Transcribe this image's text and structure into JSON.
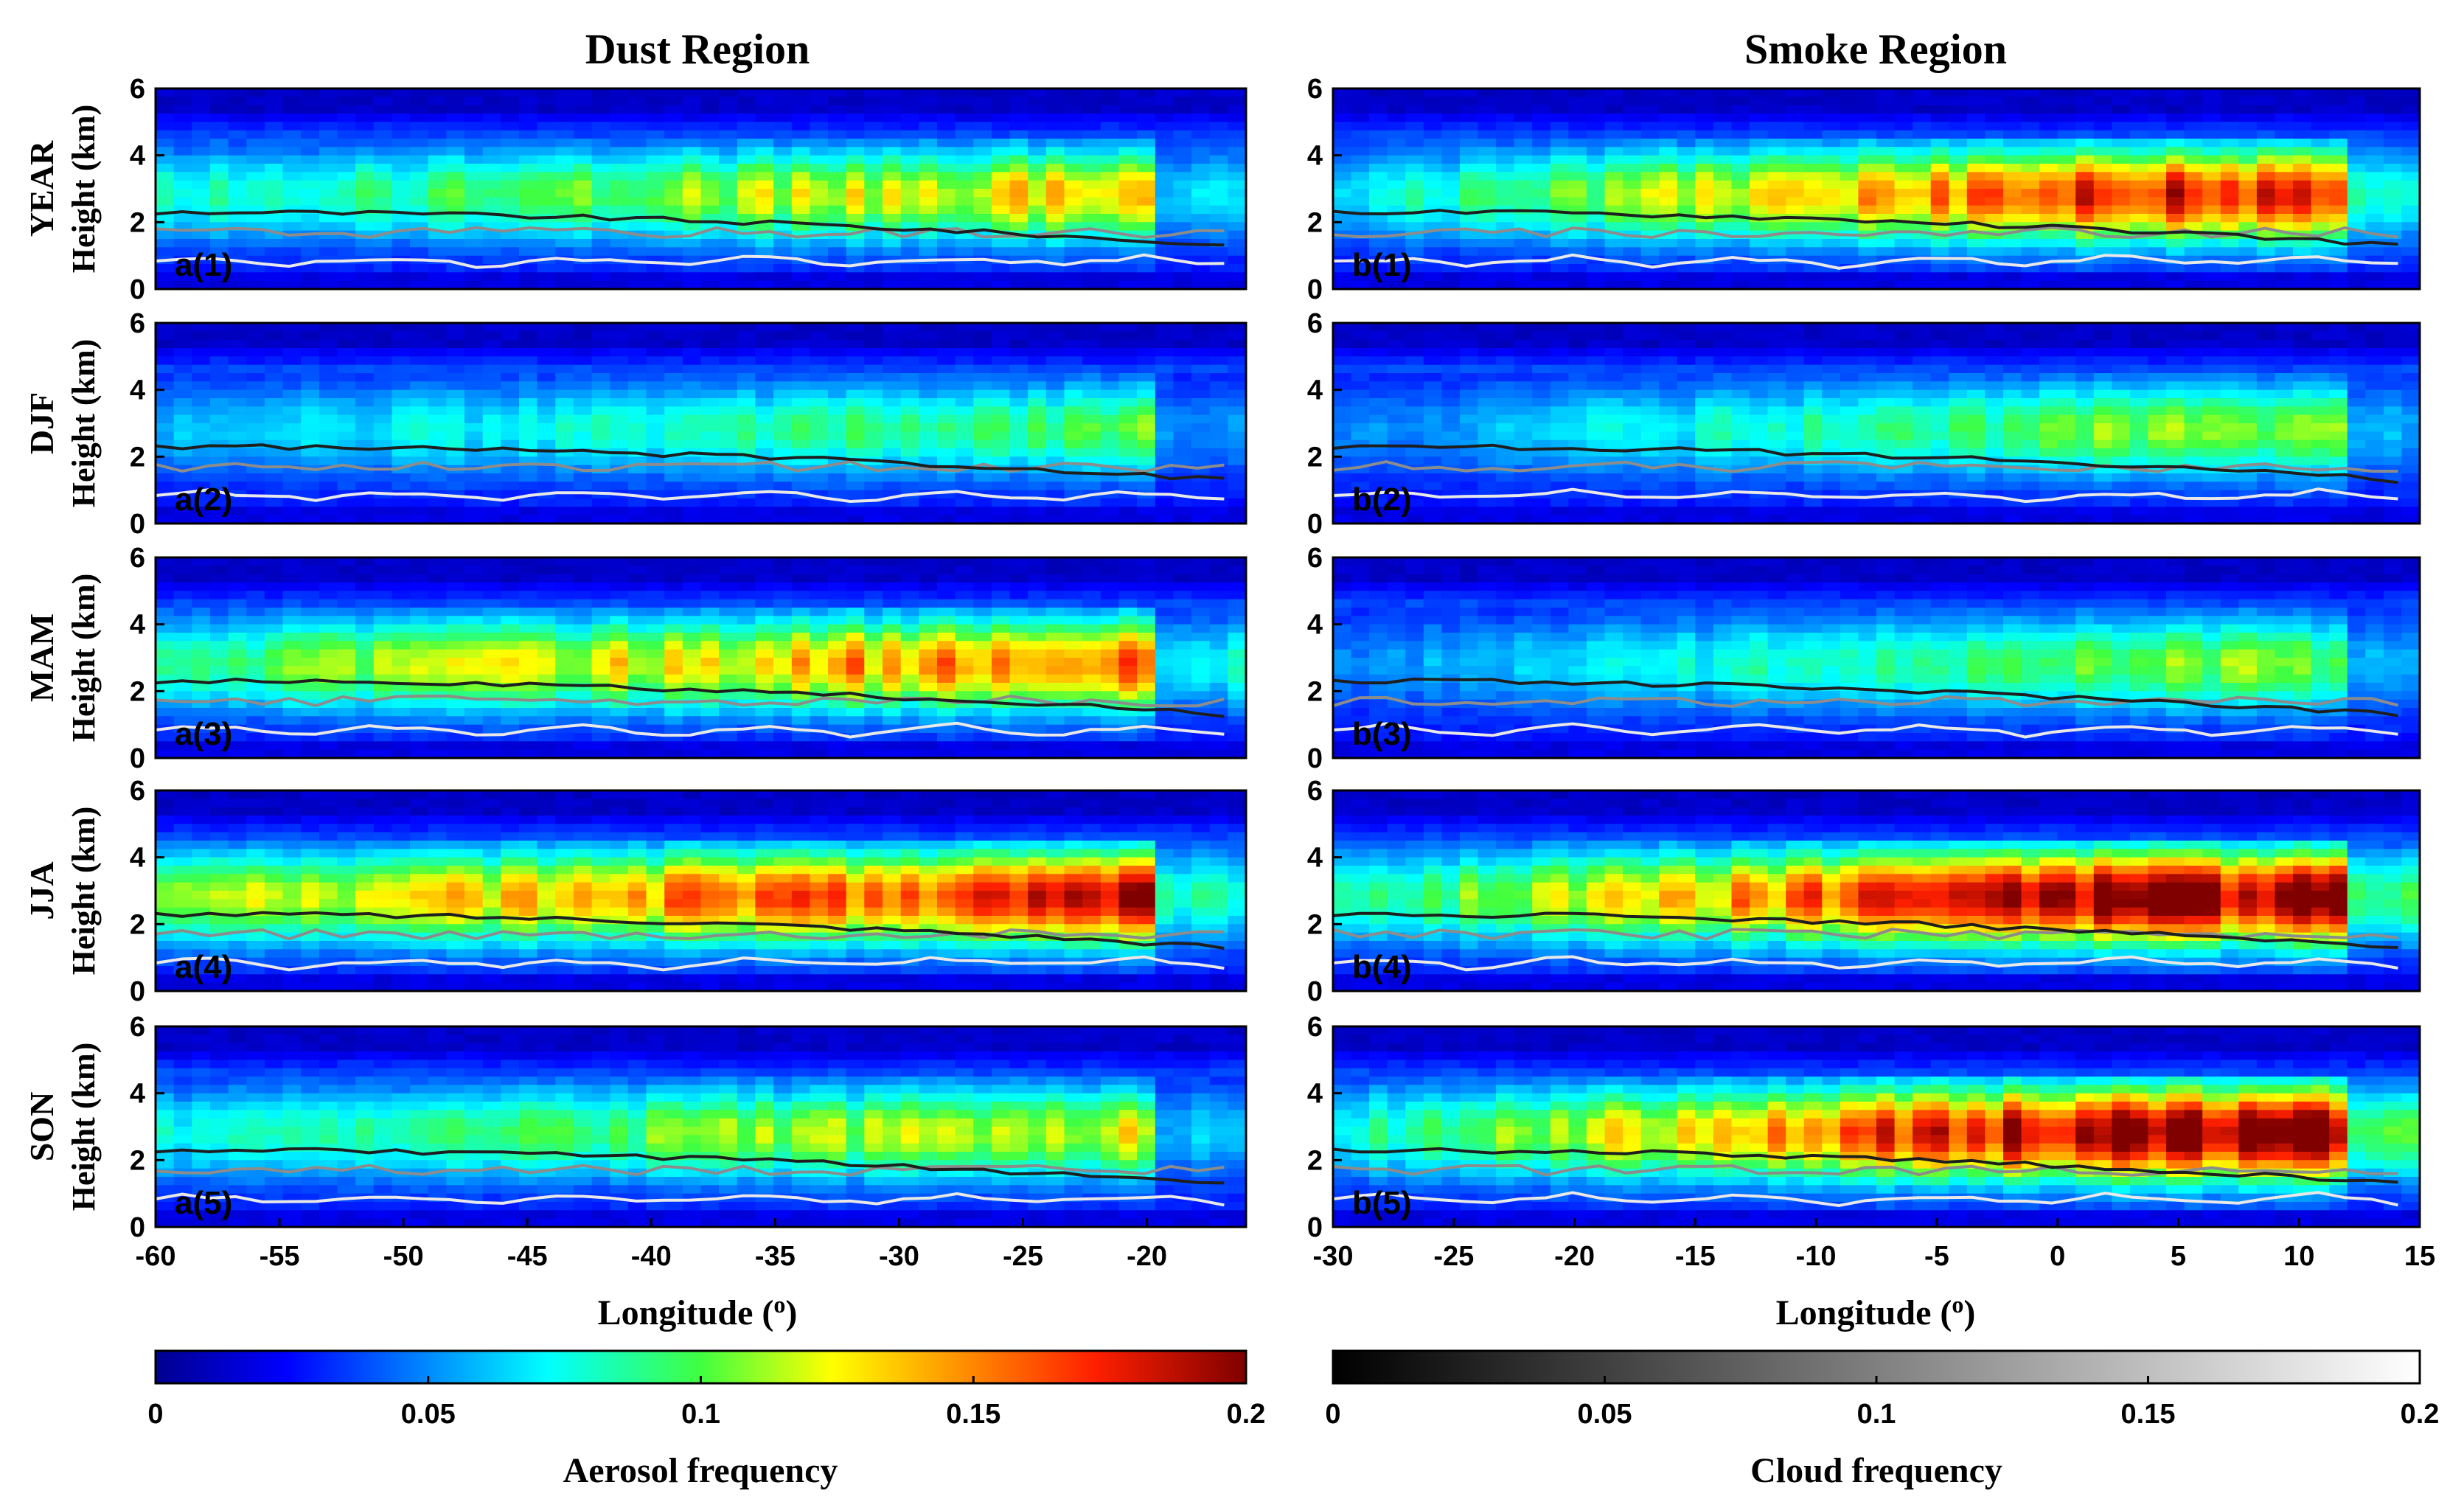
{
  "chart_data": {
    "type": "heatmap",
    "panel_titles": [
      "Dust Region",
      "Smoke Region"
    ],
    "rows": [
      {
        "season": "YEAR",
        "labels": [
          "a(1)",
          "b(1)"
        ]
      },
      {
        "season": "DJF",
        "labels": [
          "a(2)",
          "b(2)"
        ]
      },
      {
        "season": "MAM",
        "labels": [
          "a(3)",
          "b(3)"
        ]
      },
      {
        "season": "JJA",
        "labels": [
          "a(4)",
          "b(4)"
        ]
      },
      {
        "season": "SON",
        "labels": [
          "a(5)",
          "b(5)"
        ]
      }
    ],
    "ylabel": "Height (km)",
    "ylim": [
      0,
      6
    ],
    "yticks": [
      "0",
      "2",
      "4",
      "6"
    ],
    "xlabel": "Longitude (",
    "xlabel_sup": "o",
    "xlabel_close": ")",
    "dust_xlim": [
      -60,
      -16
    ],
    "dust_xticks": [
      "-60",
      "-55",
      "-50",
      "-45",
      "-40",
      "-35",
      "-30",
      "-25",
      "-20"
    ],
    "smoke_xlim": [
      -30,
      15
    ],
    "smoke_xticks": [
      "-30",
      "-25",
      "-20",
      "-15",
      "-10",
      "-5",
      "0",
      "5",
      "10",
      "15"
    ],
    "aerosol_colorbar": {
      "label": "Aerosol frequency",
      "ticks": [
        "0",
        "0.05",
        "0.1",
        "0.15",
        "0.2"
      ],
      "range": [
        0,
        0.2
      ],
      "colormap": "jet"
    },
    "cloud_colorbar": {
      "label": "Cloud frequency",
      "ticks": [
        "0",
        "0.05",
        "0.1",
        "0.15",
        "0.2"
      ],
      "range": [
        0,
        0.2
      ],
      "colormap": "gray"
    },
    "aerosol_peak": {
      "dust": {
        "YEAR": 0.14,
        "DJF": 0.1,
        "MAM": 0.17,
        "JJA": 0.2,
        "SON": 0.13
      },
      "smoke": {
        "YEAR": 0.17,
        "DJF": 0.1,
        "MAM": 0.1,
        "JJA": 0.2,
        "SON": 0.2
      }
    }
  },
  "colors": {
    "background": "#ffffff",
    "axis": "#000000",
    "pbl_line": "#1e1e1e"
  }
}
